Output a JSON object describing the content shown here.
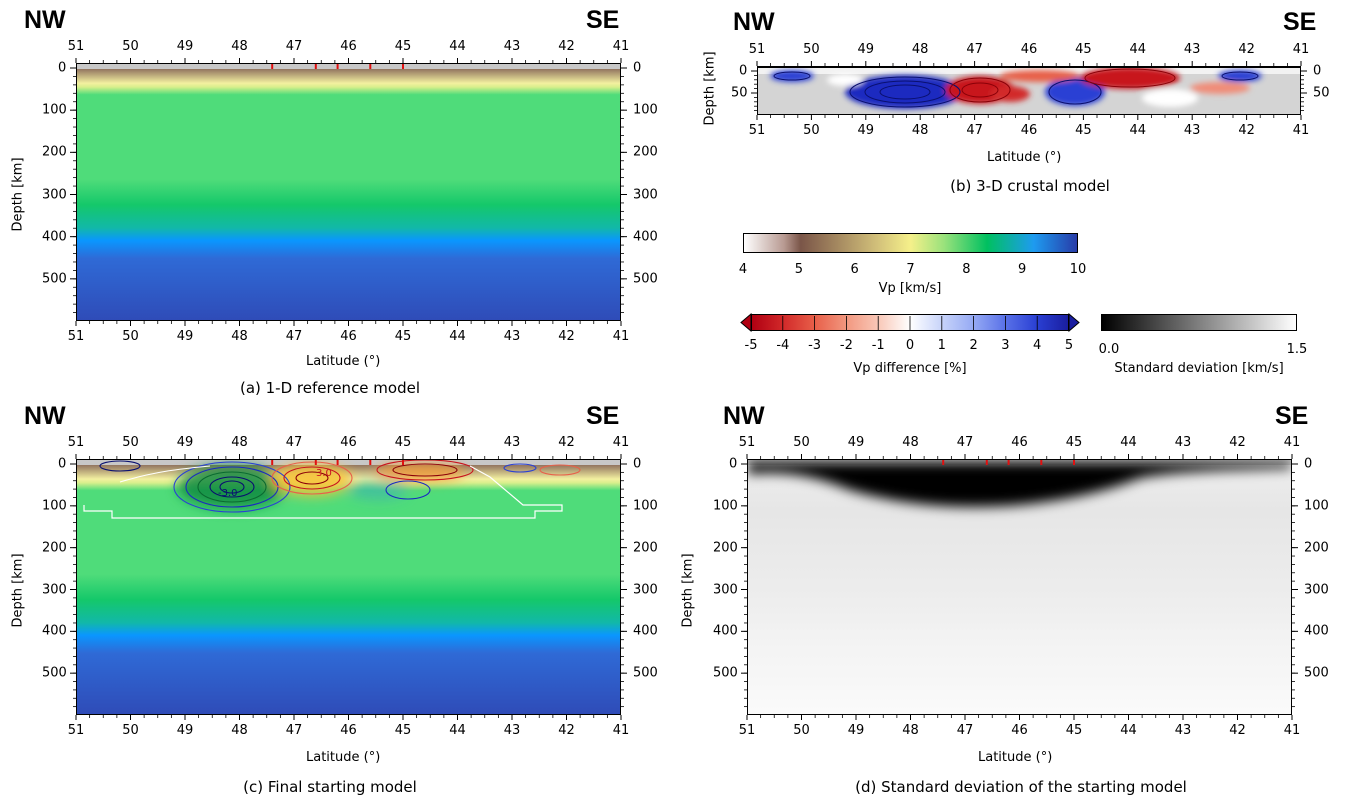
{
  "labels": {
    "nw": "NW",
    "se": "SE",
    "depth_axis": "Depth [km]",
    "lat_axis": "Latitude (°)"
  },
  "lat_ticks": [
    "51",
    "50",
    "49",
    "48",
    "47",
    "46",
    "45",
    "44",
    "43",
    "42",
    "41"
  ],
  "depth_ticks_full": [
    "0",
    "100",
    "200",
    "300",
    "400",
    "500"
  ],
  "depth_ticks_crust": [
    "0",
    "50"
  ],
  "captions": {
    "a": "(a) 1-D reference model",
    "b": "(b) 3-D crustal model",
    "c": "(c) Final starting model",
    "d": "(d) Standard deviation of the starting model"
  },
  "colorbars": {
    "vp": {
      "title": "Vp [km/s]",
      "ticks": [
        "4",
        "5",
        "6",
        "7",
        "8",
        "9",
        "10"
      ]
    },
    "vp_diff": {
      "title": "Vp difference [%]",
      "ticks": [
        "-5",
        "-4",
        "-3",
        "-2",
        "-1",
        "0",
        "1",
        "2",
        "3",
        "4",
        "5"
      ]
    },
    "std": {
      "title": "Standard deviation [km/s]",
      "min": "0.0",
      "max": "1.5"
    }
  },
  "contour_labels": {
    "pos": "3.0",
    "neg": "-3.0"
  },
  "colors": {
    "vp_gradient": [
      "#ffffff",
      "#7a5548",
      "#f5f08a",
      "#3fd276",
      "#00c060",
      "#1e9bf0",
      "#283ca8"
    ],
    "diff_neg": "#c8141e",
    "diff_pos": "#1a2ac8"
  }
}
